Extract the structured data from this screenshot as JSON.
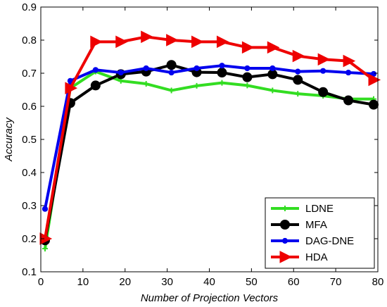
{
  "chart_data": {
    "type": "line",
    "xlabel": "Number of Projection Vectors",
    "ylabel": "Accuracy",
    "xlim": [
      0,
      80
    ],
    "ylim": [
      0.1,
      0.9
    ],
    "xticks": [
      0,
      10,
      20,
      30,
      40,
      50,
      60,
      70,
      80
    ],
    "yticks": [
      0.1,
      0.2,
      0.3,
      0.4,
      0.5,
      0.6,
      0.7,
      0.8,
      0.9
    ],
    "x": [
      1,
      7,
      13,
      19,
      25,
      31,
      37,
      43,
      49,
      55,
      61,
      67,
      73,
      79
    ],
    "grid": false,
    "legend_position": "bottom-right",
    "series": [
      {
        "name": "LDNE",
        "color": "#33dd22",
        "marker": "plus",
        "values": [
          0.17,
          0.655,
          0.705,
          0.677,
          0.668,
          0.648,
          0.662,
          0.671,
          0.663,
          0.648,
          0.638,
          0.632,
          0.622,
          0.622
        ]
      },
      {
        "name": "MFA",
        "color": "#000000",
        "marker": "circle",
        "values": [
          0.195,
          0.61,
          0.663,
          0.697,
          0.705,
          0.725,
          0.703,
          0.702,
          0.688,
          0.697,
          0.68,
          0.643,
          0.618,
          0.605
        ]
      },
      {
        "name": "DAG-DNE",
        "color": "#0000ee",
        "marker": "dot",
        "values": [
          0.29,
          0.677,
          0.71,
          0.702,
          0.715,
          0.702,
          0.715,
          0.723,
          0.715,
          0.715,
          0.705,
          0.707,
          0.702,
          0.698
        ]
      },
      {
        "name": "HDA",
        "color": "#ee0000",
        "marker": "triangle-right",
        "values": [
          0.2,
          0.655,
          0.795,
          0.795,
          0.81,
          0.8,
          0.795,
          0.795,
          0.778,
          0.778,
          0.752,
          0.742,
          0.737,
          0.68
        ]
      }
    ]
  }
}
